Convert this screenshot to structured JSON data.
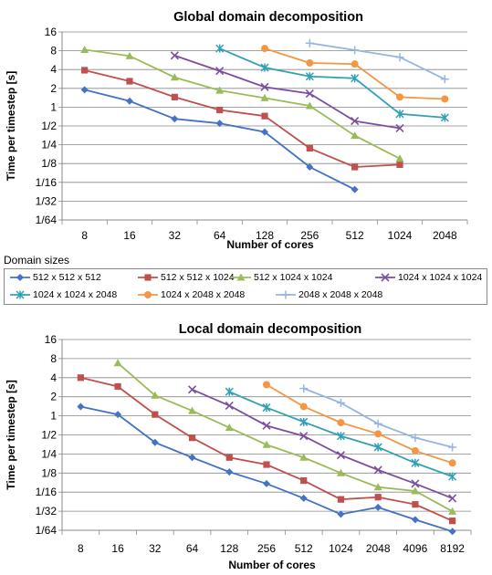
{
  "legend": {
    "title": "Domain sizes",
    "items": [
      {
        "label": "512 x 512 x 512",
        "color": "#4472c4",
        "marker": "diamond"
      },
      {
        "label": "512 x 512 x 1024",
        "color": "#c0504d",
        "marker": "square"
      },
      {
        "label": "512 x 1024 x 1024",
        "color": "#9bbb59",
        "marker": "triangle"
      },
      {
        "label": "1024 x 1024 x 1024",
        "color": "#7b4f9e",
        "marker": "x"
      },
      {
        "label": "1024 x 1024 x 2048",
        "color": "#31a0b5",
        "marker": "star"
      },
      {
        "label": "1024 x 2048 x 2048",
        "color": "#f59645",
        "marker": "circle"
      },
      {
        "label": "2048 x 2048 x 2048",
        "color": "#98b4e0",
        "marker": "plus"
      }
    ]
  },
  "chart_data": [
    {
      "type": "line",
      "title": "Global domain decomposition",
      "xlabel": "Number of cores",
      "ylabel": "Time per timestep [s]",
      "x_scale": "log2",
      "y_scale": "log2",
      "categories": [
        "8",
        "16",
        "32",
        "64",
        "128",
        "256",
        "512",
        "1024",
        "2048"
      ],
      "yticks": [
        "16",
        "8",
        "4",
        "2",
        "1",
        "1/2",
        "1/4",
        "1/8",
        "1/16",
        "1/32",
        "1/64"
      ],
      "ylim": [
        0.015625,
        16
      ],
      "grid": true,
      "series": [
        {
          "name": "512 x 512 x 512",
          "x": [
            8,
            16,
            32,
            64,
            128,
            256,
            512
          ],
          "y": [
            1.9,
            1.25,
            0.65,
            0.55,
            0.4,
            0.11,
            0.048
          ]
        },
        {
          "name": "512 x 512 x 1024",
          "x": [
            8,
            16,
            32,
            64,
            128,
            256,
            512,
            1024
          ],
          "y": [
            3.9,
            2.6,
            1.45,
            0.9,
            0.72,
            0.22,
            0.11,
            0.12
          ]
        },
        {
          "name": "512 x 1024 x 1024",
          "x": [
            8,
            16,
            32,
            64,
            128,
            256,
            512,
            1024
          ],
          "y": [
            8.3,
            6.6,
            3.0,
            1.85,
            1.4,
            1.05,
            0.35,
            0.15
          ]
        },
        {
          "name": "1024 x 1024 x 1024",
          "x": [
            32,
            64,
            128,
            256,
            512,
            1024
          ],
          "y": [
            6.7,
            3.8,
            2.1,
            1.65,
            0.6,
            0.46
          ]
        },
        {
          "name": "1024 x 1024 x 2048",
          "x": [
            64,
            128,
            256,
            512,
            1024,
            2048
          ],
          "y": [
            8.7,
            4.3,
            3.1,
            2.9,
            0.78,
            0.68
          ]
        },
        {
          "name": "1024 x 2048 x 2048",
          "x": [
            128,
            256,
            512,
            1024,
            2048
          ],
          "y": [
            8.7,
            5.1,
            4.9,
            1.45,
            1.35
          ]
        },
        {
          "name": "2048 x 2048 x 2048",
          "x": [
            256,
            512,
            1024,
            2048
          ],
          "y": [
            10.6,
            8.2,
            6.3,
            2.8
          ]
        }
      ]
    },
    {
      "type": "line",
      "title": "Local domain decomposition",
      "xlabel": "Number of cores",
      "ylabel": "Time per timestep [s]",
      "x_scale": "log2",
      "y_scale": "log2",
      "categories": [
        "8",
        "16",
        "32",
        "64",
        "128",
        "256",
        "512",
        "1024",
        "2048",
        "4096",
        "8192"
      ],
      "yticks": [
        "16",
        "8",
        "4",
        "2",
        "1",
        "1/2",
        "1/4",
        "1/8",
        "1/16",
        "1/32",
        "1/64"
      ],
      "ylim": [
        0.015625,
        16
      ],
      "grid": true,
      "series": [
        {
          "name": "512 x 512 x 512",
          "x": [
            8,
            16,
            32,
            64,
            128,
            256,
            512,
            1024,
            2048,
            4096,
            8192
          ],
          "y": [
            1.4,
            1.05,
            0.38,
            0.22,
            0.13,
            0.085,
            0.05,
            0.028,
            0.036,
            0.023,
            0.015
          ]
        },
        {
          "name": "512 x 512 x 1024",
          "x": [
            8,
            16,
            32,
            64,
            128,
            256,
            512,
            1024,
            2048,
            4096,
            8192
          ],
          "y": [
            4.0,
            2.9,
            1.05,
            0.45,
            0.22,
            0.17,
            0.095,
            0.048,
            0.052,
            0.04,
            0.022
          ]
        },
        {
          "name": "512 x 1024 x 1024",
          "x": [
            16,
            32,
            64,
            128,
            256,
            512,
            1024,
            2048,
            4096,
            8192
          ],
          "y": [
            6.8,
            2.1,
            1.2,
            0.65,
            0.35,
            0.22,
            0.125,
            0.075,
            0.065,
            0.031
          ]
        },
        {
          "name": "1024 x 1024 x 1024",
          "x": [
            64,
            128,
            256,
            512,
            1024,
            2048,
            4096,
            8192
          ],
          "y": [
            2.6,
            1.45,
            0.7,
            0.48,
            0.24,
            0.14,
            0.085,
            0.05
          ]
        },
        {
          "name": "1024 x 1024 x 2048",
          "x": [
            128,
            256,
            512,
            1024,
            2048,
            4096,
            8192
          ],
          "y": [
            2.4,
            1.35,
            0.8,
            0.48,
            0.32,
            0.18,
            0.11
          ]
        },
        {
          "name": "1024 x 2048 x 2048",
          "x": [
            256,
            512,
            1024,
            2048,
            4096,
            8192
          ],
          "y": [
            3.1,
            1.4,
            0.78,
            0.52,
            0.28,
            0.18
          ]
        },
        {
          "name": "2048 x 2048 x 2048",
          "x": [
            512,
            1024,
            2048,
            4096,
            8192
          ],
          "y": [
            2.7,
            1.6,
            0.75,
            0.45,
            0.32
          ]
        }
      ]
    }
  ]
}
